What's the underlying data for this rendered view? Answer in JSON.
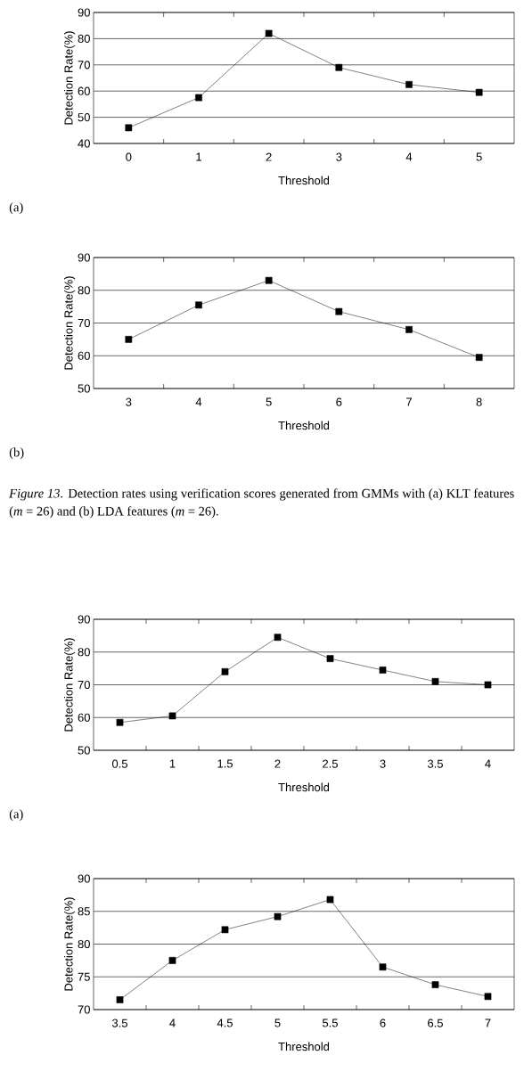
{
  "chart_data": [
    {
      "type": "line",
      "xlabel": "Threshold",
      "ylabel": "Detection Rate(%)",
      "categories": [
        "0",
        "1",
        "2",
        "3",
        "4",
        "5"
      ],
      "series": [
        {
          "color": "#000000",
          "values": [
            46,
            57.5,
            82,
            69,
            62.5,
            59.5
          ]
        }
      ],
      "ylim": [
        40,
        90
      ],
      "yticks": [
        40,
        50,
        60,
        70,
        80,
        90
      ],
      "grid": "y",
      "marker": "square",
      "line_style": "solid",
      "annotations": [
        "(a)"
      ]
    },
    {
      "type": "line",
      "xlabel": "Threshold",
      "ylabel": "Detection Rate(%)",
      "categories": [
        "3",
        "4",
        "5",
        "6",
        "7",
        "8"
      ],
      "series": [
        {
          "color": "#000000",
          "values": [
            65,
            75.5,
            83,
            73.5,
            68,
            59.5
          ]
        }
      ],
      "ylim": [
        50,
        90
      ],
      "yticks": [
        50,
        60,
        70,
        80,
        90
      ],
      "grid": "y",
      "marker": "square",
      "line_style": "solid",
      "annotations": [
        "(b)",
        "*Figure 13*.    Detection rates using verification scores generated from GMMs with (a) KLT features (*m* = 26) and (b) LDA features (*m* = 26)."
      ]
    },
    {
      "type": "line",
      "xlabel": "Threshold",
      "ylabel": "Detection Rate(%)",
      "categories": [
        "0.5",
        "1",
        "1.5",
        "2",
        "2.5",
        "3",
        "3.5",
        "4"
      ],
      "series": [
        {
          "color": "#000000",
          "values": [
            58.5,
            60.5,
            74,
            84.5,
            78,
            74.5,
            71,
            70
          ]
        }
      ],
      "ylim": [
        50,
        90
      ],
      "yticks": [
        50,
        60,
        70,
        80,
        90
      ],
      "grid": "y",
      "marker": "square",
      "line_style": "solid",
      "annotations": [
        "(a)"
      ]
    },
    {
      "type": "line",
      "xlabel": "Threshold",
      "ylabel": "Detection Rate(%)",
      "categories": [
        "3.5",
        "4",
        "4.5",
        "5",
        "5.5",
        "6",
        "6.5",
        "7"
      ],
      "series": [
        {
          "color": "#000000",
          "values": [
            71.5,
            77.5,
            82.2,
            84.2,
            86.8,
            76.5,
            73.8,
            72
          ]
        }
      ],
      "ylim": [
        70,
        90
      ],
      "yticks": [
        70,
        75,
        80,
        85,
        90
      ],
      "grid": "y",
      "marker": "square",
      "line_style": "solid"
    }
  ]
}
